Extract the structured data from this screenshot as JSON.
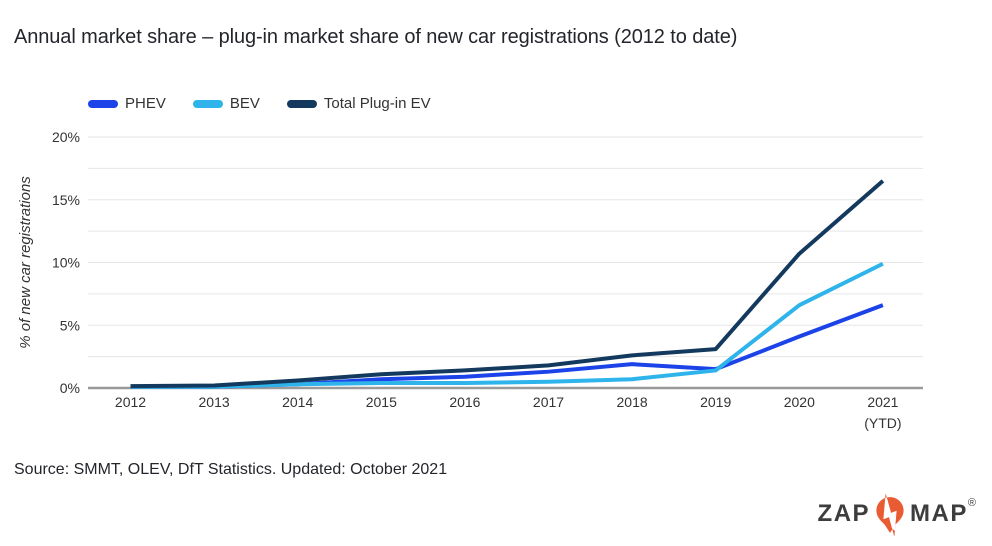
{
  "title": "Annual market share – plug-in market share of new car registrations (2012 to date)",
  "source": "Source: SMMT, OLEV, DfT Statistics. Updated: October 2021",
  "logo": {
    "zap": "ZAP",
    "map": "MAP",
    "registered": "®",
    "pin_color": "#e95c33",
    "text_color": "#3d3d3d"
  },
  "colors": {
    "grid": "#e6e6e6",
    "axis": "#9a9a9a",
    "tick_text": "#333333",
    "phev": "#1b43e8",
    "bev": "#2eb4ea",
    "total": "#133a5e"
  },
  "chart_data": {
    "type": "line",
    "title": "Annual market share – plug-in market share of new car registrations (2012 to date)",
    "categories": [
      "2012",
      "2013",
      "2014",
      "2015",
      "2016",
      "2017",
      "2018",
      "2019",
      "2020",
      "2021"
    ],
    "last_category_note": "(YTD)",
    "xlabel": "",
    "ylabel": "% of new car registrations",
    "ylim": [
      0,
      20
    ],
    "ytick_step": 5,
    "minor_grid_step": 2.5,
    "ytick_suffix": "%",
    "grid": true,
    "legend_position": "top-left",
    "series": [
      {
        "name": "PHEV",
        "color": "#1b43e8",
        "values": [
          0.1,
          0.1,
          0.3,
          0.7,
          0.9,
          1.3,
          1.9,
          1.5,
          4.1,
          6.6
        ]
      },
      {
        "name": "BEV",
        "color": "#2eb4ea",
        "values": [
          0.1,
          0.1,
          0.3,
          0.4,
          0.4,
          0.5,
          0.7,
          1.4,
          6.6,
          9.9
        ]
      },
      {
        "name": "Total Plug-in EV",
        "color": "#133a5e",
        "values": [
          0.15,
          0.2,
          0.6,
          1.1,
          1.4,
          1.8,
          2.6,
          3.1,
          10.7,
          16.5
        ]
      }
    ]
  }
}
